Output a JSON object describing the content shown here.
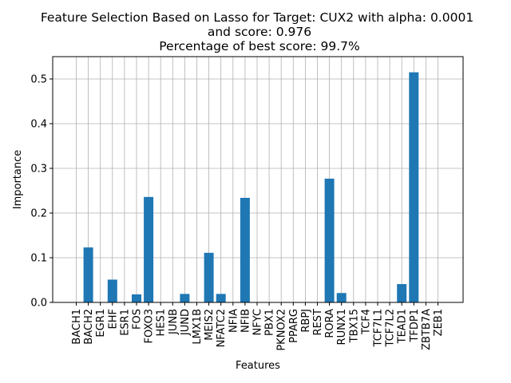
{
  "chart_data": {
    "type": "bar",
    "title": [
      "Feature Selection Based on Lasso for Target: CUX2 with alpha: 0.0001",
      "and score: 0.976",
      "Percentage of best score: 99.7%"
    ],
    "xlabel": "Features",
    "ylabel": "Importance",
    "ylim": [
      0,
      0.55
    ],
    "yticks": [
      "0.0",
      "0.1",
      "0.2",
      "0.3",
      "0.4",
      "0.5"
    ],
    "grid": true,
    "bar_color": "#1f77b4",
    "categories": [
      "BACH1",
      "BACH2",
      "EGR1",
      "EHF",
      "ESR1",
      "FOS",
      "FOXO3",
      "HES1",
      "JUNB",
      "JUND",
      "LMX1B",
      "MEIS2",
      "NFATC2",
      "NFIA",
      "NFIB",
      "NFYC",
      "PBX1",
      "PKNOX2",
      "PPARG",
      "RBPJ",
      "REST",
      "RORA",
      "RUNX1",
      "TBX15",
      "TCF4",
      "TCF7L1",
      "TCF7L2",
      "TEAD1",
      "TFDP1",
      "ZBTB7A",
      "ZEB1"
    ],
    "values": [
      0,
      0.123,
      0,
      0.051,
      0,
      0.018,
      0.236,
      0,
      0,
      0.019,
      0,
      0.111,
      0.019,
      0,
      0.234,
      0,
      0,
      0,
      0,
      0,
      0,
      0.277,
      0.021,
      0,
      0,
      0,
      0,
      0.041,
      0.515,
      0,
      0
    ]
  }
}
